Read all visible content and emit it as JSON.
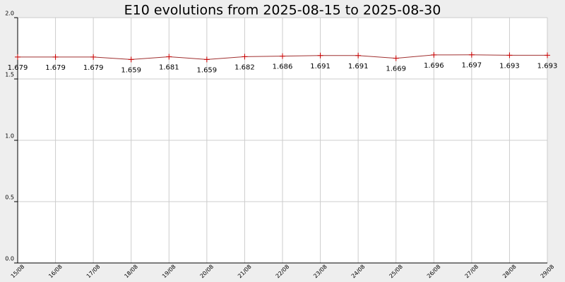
{
  "chart_data": {
    "type": "line",
    "title": "E10 evolutions from 2025-08-15 to 2025-08-30",
    "categories": [
      "15/08",
      "16/08",
      "17/08",
      "18/08",
      "19/08",
      "20/08",
      "21/08",
      "22/08",
      "23/08",
      "24/08",
      "25/08",
      "26/08",
      "27/08",
      "28/08",
      "29/08"
    ],
    "series": [
      {
        "color": "#cc0000",
        "values": [
          1.679,
          1.679,
          1.679,
          1.659,
          1.681,
          1.659,
          1.682,
          1.686,
          1.691,
          1.691,
          1.669,
          1.696,
          1.697,
          1.693,
          1.693
        ]
      }
    ],
    "ylim": [
      0,
      2
    ],
    "yticks": [
      {
        "value": 0,
        "label": "0.0"
      },
      0.5,
      {
        "value": 1,
        "label": "1.0"
      },
      1.5,
      {
        "value": 2,
        "label": "2.0"
      }
    ],
    "grid": true
  }
}
